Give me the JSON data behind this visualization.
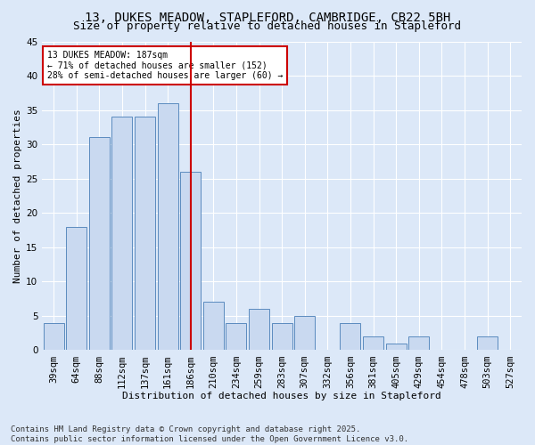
{
  "title_line1": "13, DUKES MEADOW, STAPLEFORD, CAMBRIDGE, CB22 5BH",
  "title_line2": "Size of property relative to detached houses in Stapleford",
  "xlabel": "Distribution of detached houses by size in Stapleford",
  "ylabel": "Number of detached properties",
  "categories": [
    "39sqm",
    "64sqm",
    "88sqm",
    "112sqm",
    "137sqm",
    "161sqm",
    "186sqm",
    "210sqm",
    "234sqm",
    "259sqm",
    "283sqm",
    "307sqm",
    "332sqm",
    "356sqm",
    "381sqm",
    "405sqm",
    "429sqm",
    "454sqm",
    "478sqm",
    "503sqm",
    "527sqm"
  ],
  "values": [
    4,
    18,
    31,
    34,
    34,
    36,
    26,
    7,
    4,
    6,
    4,
    5,
    0,
    4,
    2,
    1,
    2,
    0,
    0,
    2,
    0
  ],
  "bar_color": "#c9d9f0",
  "bar_edge_color": "#5b8bbf",
  "vline_color": "#cc0000",
  "vline_x_index": 6,
  "ylim": [
    0,
    45
  ],
  "yticks": [
    0,
    5,
    10,
    15,
    20,
    25,
    30,
    35,
    40,
    45
  ],
  "annotation_title": "13 DUKES MEADOW: 187sqm",
  "annotation_line2": "← 71% of detached houses are smaller (152)",
  "annotation_line3": "28% of semi-detached houses are larger (60) →",
  "annotation_box_color": "#ffffff",
  "annotation_box_edge": "#cc0000",
  "footer_line1": "Contains HM Land Registry data © Crown copyright and database right 2025.",
  "footer_line2": "Contains public sector information licensed under the Open Government Licence v3.0.",
  "bg_color": "#dce8f8",
  "grid_color": "#ffffff",
  "title_fontsize": 10,
  "subtitle_fontsize": 9,
  "axis_label_fontsize": 8,
  "tick_fontsize": 7.5,
  "annotation_fontsize": 7,
  "footer_fontsize": 6.5
}
